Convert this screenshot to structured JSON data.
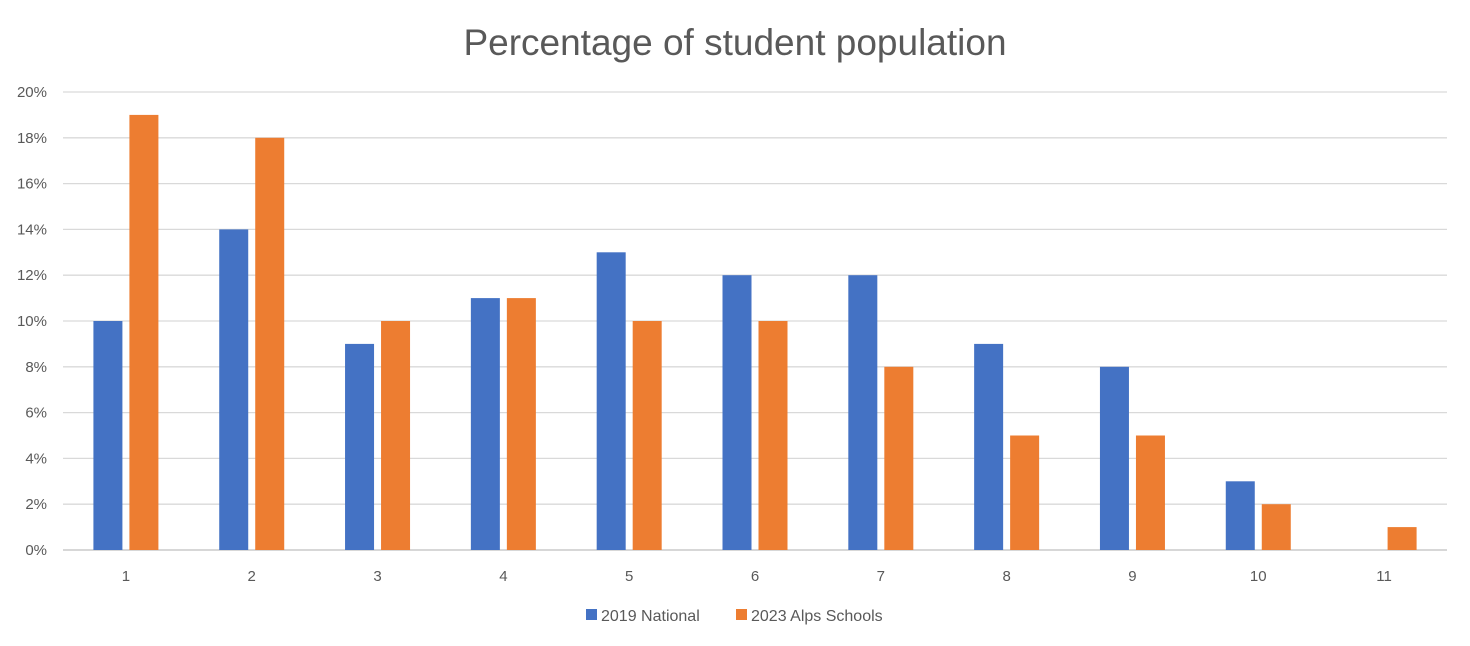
{
  "chart_data": {
    "type": "bar",
    "title": "Percentage of student population",
    "xlabel": "",
    "ylabel": "",
    "categories": [
      "1",
      "2",
      "3",
      "4",
      "5",
      "6",
      "7",
      "8",
      "9",
      "10",
      "11"
    ],
    "series": [
      {
        "name": "2019 National",
        "color": "#4472c4",
        "values": [
          10,
          14,
          9,
          11,
          13,
          12,
          12,
          9,
          8,
          3,
          0
        ]
      },
      {
        "name": "2023 Alps Schools",
        "color": "#ed7d31",
        "values": [
          19,
          18,
          10,
          11,
          10,
          10,
          8,
          5,
          5,
          2,
          1
        ]
      }
    ],
    "ylim": [
      0,
      20
    ],
    "yticks": [
      "0%",
      "2%",
      "4%",
      "6%",
      "8%",
      "10%",
      "12%",
      "14%",
      "16%",
      "18%",
      "20%"
    ],
    "grid": true,
    "gridline_color": "#d9d9d9",
    "legend_position": "bottom"
  }
}
